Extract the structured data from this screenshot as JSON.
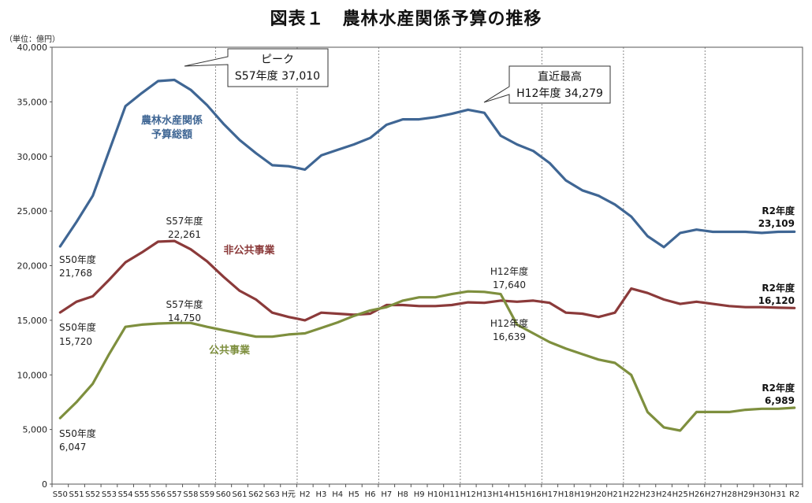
{
  "title": "図表１　農林水産関係予算の推移",
  "unit_label": "（単位：億円）",
  "chart_data": {
    "type": "line",
    "title": "図表１　農林水産関係予算の推移",
    "ylabel": "（単位：億円）",
    "ylim": [
      0,
      40000
    ],
    "yticks": [
      "0",
      "5,000",
      "10,000",
      "15,000",
      "20,000",
      "25,000",
      "30,000",
      "35,000",
      "40,000"
    ],
    "x": [
      "S50",
      "S51",
      "S52",
      "S53",
      "S54",
      "S55",
      "S56",
      "S57",
      "S58",
      "S59",
      "S60",
      "S61",
      "S62",
      "S63",
      "H元",
      "H2",
      "H3",
      "H4",
      "H5",
      "H6",
      "H7",
      "H8",
      "H9",
      "H10",
      "H11",
      "H12",
      "H13",
      "H14",
      "H15",
      "H16",
      "H17",
      "H18",
      "H19",
      "H20",
      "H21",
      "H22",
      "H23",
      "H24",
      "H25",
      "H26",
      "H27",
      "H28",
      "H29",
      "H30",
      "H31",
      "R2"
    ],
    "x_tick_labels": [
      "S50",
      "S51",
      "S52",
      "S53",
      "S54",
      "S55",
      "S56",
      "S57",
      "S58",
      "S59",
      "S60",
      "S61",
      "S62",
      "S63",
      "H元",
      "H2",
      "H3",
      "H4",
      "H5",
      "H6",
      "H7",
      "H8",
      "H9",
      "H10",
      "H11",
      "H12",
      "H13",
      "H14",
      "H15",
      "H16",
      "H17",
      "H18",
      "H19",
      "H20",
      "H21",
      "H22",
      "H23",
      "H24",
      "H25",
      "H26",
      "H27",
      "H28",
      "H29",
      "H30",
      "H31",
      "R2"
    ],
    "grid": "vertical dotted every 5 years",
    "series": [
      {
        "name": "農林水産関係予算総額",
        "color": "#3f6694",
        "values": [
          21768,
          24000,
          26400,
          30500,
          34600,
          35800,
          36900,
          37010,
          36100,
          34700,
          33000,
          31500,
          30300,
          29200,
          29100,
          28800,
          30100,
          30600,
          31100,
          31700,
          32900,
          33400,
          33400,
          33600,
          33900,
          34279,
          34000,
          31900,
          31100,
          30500,
          29400,
          27800,
          26900,
          26400,
          25600,
          24500,
          22700,
          21700,
          23000,
          23300,
          23100,
          23100,
          23100,
          23000,
          23100,
          23109
        ]
      },
      {
        "name": "非公共事業",
        "color": "#8b3a3a",
        "values": [
          15720,
          16700,
          17200,
          18700,
          20300,
          21200,
          22200,
          22261,
          21500,
          20400,
          19000,
          17700,
          16900,
          15700,
          15300,
          15000,
          15700,
          15600,
          15500,
          15600,
          16400,
          16400,
          16300,
          16300,
          16400,
          16639,
          16600,
          16800,
          16700,
          16800,
          16600,
          15700,
          15600,
          15300,
          15700,
          17900,
          17500,
          16900,
          16500,
          16700,
          16500,
          16300,
          16200,
          16200,
          16150,
          16120
        ]
      },
      {
        "name": "公共事業",
        "color": "#7e8f3e",
        "values": [
          6047,
          7500,
          9200,
          11900,
          14400,
          14600,
          14700,
          14750,
          14750,
          14400,
          14100,
          13800,
          13500,
          13500,
          13700,
          13800,
          14300,
          14800,
          15400,
          15900,
          16200,
          16800,
          17100,
          17100,
          17400,
          17640,
          17600,
          17400,
          14600,
          13800,
          13000,
          12400,
          11900,
          11400,
          11100,
          10000,
          6600,
          5200,
          4900,
          6600,
          6600,
          6600,
          6800,
          6900,
          6900,
          6989
        ]
      }
    ],
    "annotations": {
      "peak_title": "ピーク",
      "peak_value": "S57年度  37,010",
      "recent_title": "直近最高",
      "recent_value": "H12年度  34,279",
      "total_label_1": "農林水産関係",
      "total_label_2": "予算総額",
      "total_start_year": "S50年度",
      "total_start_value": "21,768",
      "total_end_year": "R2年度",
      "total_end_value": "23,109",
      "nonpub_label": "非公共事業",
      "nonpub_start_year": "S50年度",
      "nonpub_start_value": "15,720",
      "nonpub_peak_year": "S57年度",
      "nonpub_peak_value": "22,261",
      "nonpub_h12_year": "H12年度",
      "nonpub_h12_value": "16,639",
      "nonpub_end_year": "R2年度",
      "nonpub_end_value": "16,120",
      "pub_label": "公共事業",
      "pub_start_year": "S50年度",
      "pub_start_value": "6,047",
      "pub_peak_year": "S57年度",
      "pub_peak_value": "14,750",
      "pub_h12_year": "H12年度",
      "pub_h12_value": "17,640",
      "pub_end_year": "R2年度",
      "pub_end_value": "6,989"
    }
  }
}
